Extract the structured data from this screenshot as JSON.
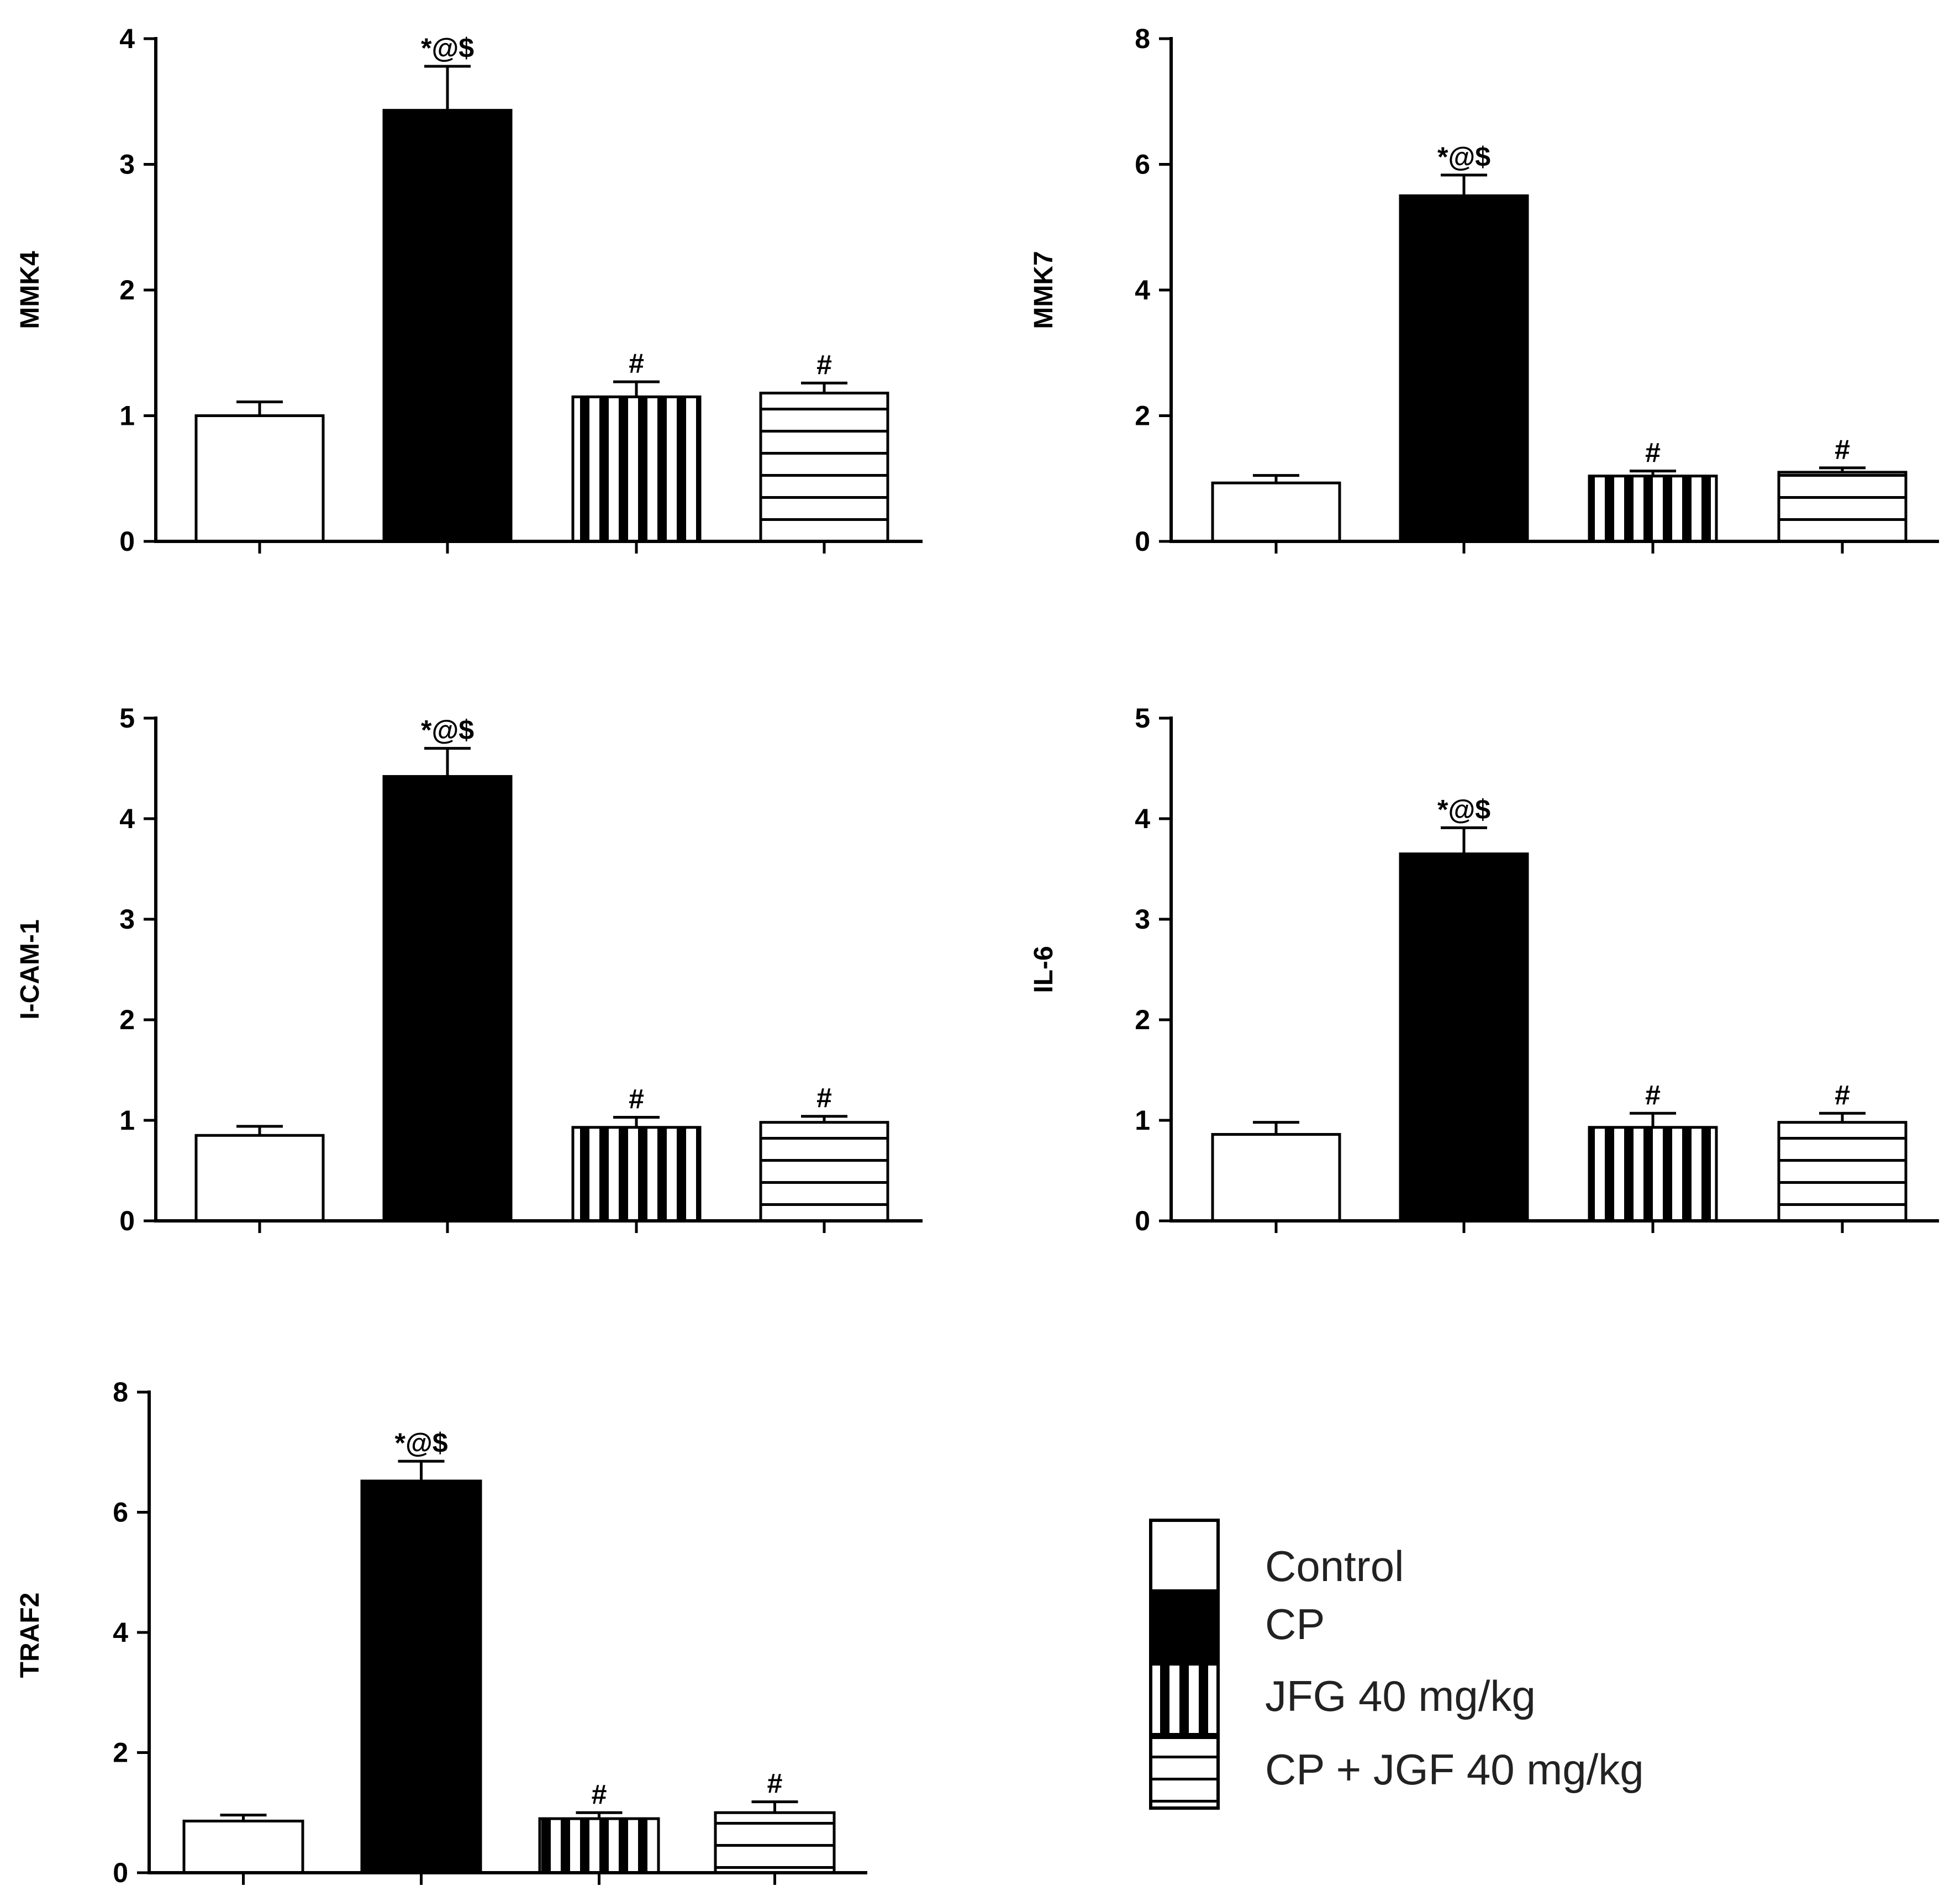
{
  "groups": [
    "Control",
    "CP",
    "JFG 40 mg/kg",
    "CP + JGF 40 mg/kg"
  ],
  "legend": {
    "items": [
      {
        "label": "Control",
        "pattern": "blank"
      },
      {
        "label": "CP",
        "pattern": "solid"
      },
      {
        "label": "JFG 40 mg/kg",
        "pattern": "vertical"
      },
      {
        "label": "CP + JGF 40 mg/kg",
        "pattern": "horizontal"
      }
    ]
  },
  "chart_data": [
    {
      "type": "bar",
      "id": "mmk4",
      "ylabel": "MMK4",
      "categories": [
        "Control",
        "CP",
        "JFG 40 mg/kg",
        "CP + JGF 40 mg/kg"
      ],
      "values": [
        1.0,
        3.43,
        1.15,
        1.18
      ],
      "errors": [
        0.11,
        0.35,
        0.12,
        0.08
      ],
      "annotations": [
        "",
        "*@$",
        "#",
        "#"
      ],
      "ylim": [
        0,
        4
      ],
      "yticks": [
        0,
        1,
        2,
        3,
        4
      ]
    },
    {
      "type": "bar",
      "id": "mmk7",
      "ylabel": "MMK7",
      "categories": [
        "Control",
        "CP",
        "JFG 40 mg/kg",
        "CP + JGF 40 mg/kg"
      ],
      "values": [
        0.93,
        5.5,
        1.04,
        1.1
      ],
      "errors": [
        0.12,
        0.33,
        0.08,
        0.07
      ],
      "annotations": [
        "",
        "*@$",
        "#",
        "#"
      ],
      "ylim": [
        0,
        8
      ],
      "yticks": [
        0,
        2,
        4,
        6,
        8
      ]
    },
    {
      "type": "bar",
      "id": "icam1",
      "ylabel": "I-CAM-1",
      "categories": [
        "Control",
        "CP",
        "JFG 40 mg/kg",
        "CP + JGF 40 mg/kg"
      ],
      "values": [
        0.85,
        4.42,
        0.93,
        0.98
      ],
      "errors": [
        0.09,
        0.28,
        0.1,
        0.06
      ],
      "annotations": [
        "",
        "*@$",
        "#",
        "#"
      ],
      "ylim": [
        0,
        5
      ],
      "yticks": [
        0,
        1,
        2,
        3,
        4,
        5
      ]
    },
    {
      "type": "bar",
      "id": "il6",
      "ylabel": "IL-6",
      "categories": [
        "Control",
        "CP",
        "JFG 40 mg/kg",
        "CP + JGF 40 mg/kg"
      ],
      "values": [
        0.86,
        3.65,
        0.93,
        0.98
      ],
      "errors": [
        0.12,
        0.26,
        0.14,
        0.09
      ],
      "annotations": [
        "",
        "*@$",
        "#",
        "#"
      ],
      "ylim": [
        0,
        5
      ],
      "yticks": [
        0,
        1,
        2,
        3,
        4,
        5
      ]
    },
    {
      "type": "bar",
      "id": "traf2",
      "ylabel": "TRAF2",
      "categories": [
        "Control",
        "CP",
        "JFG 40 mg/kg",
        "CP + JGF 40 mg/kg"
      ],
      "values": [
        0.86,
        6.52,
        0.9,
        1.0
      ],
      "errors": [
        0.1,
        0.33,
        0.1,
        0.18
      ],
      "annotations": [
        "",
        "*@$",
        "#",
        "#"
      ],
      "ylim": [
        0,
        8
      ],
      "yticks": [
        0,
        2,
        4,
        6,
        8
      ]
    }
  ]
}
